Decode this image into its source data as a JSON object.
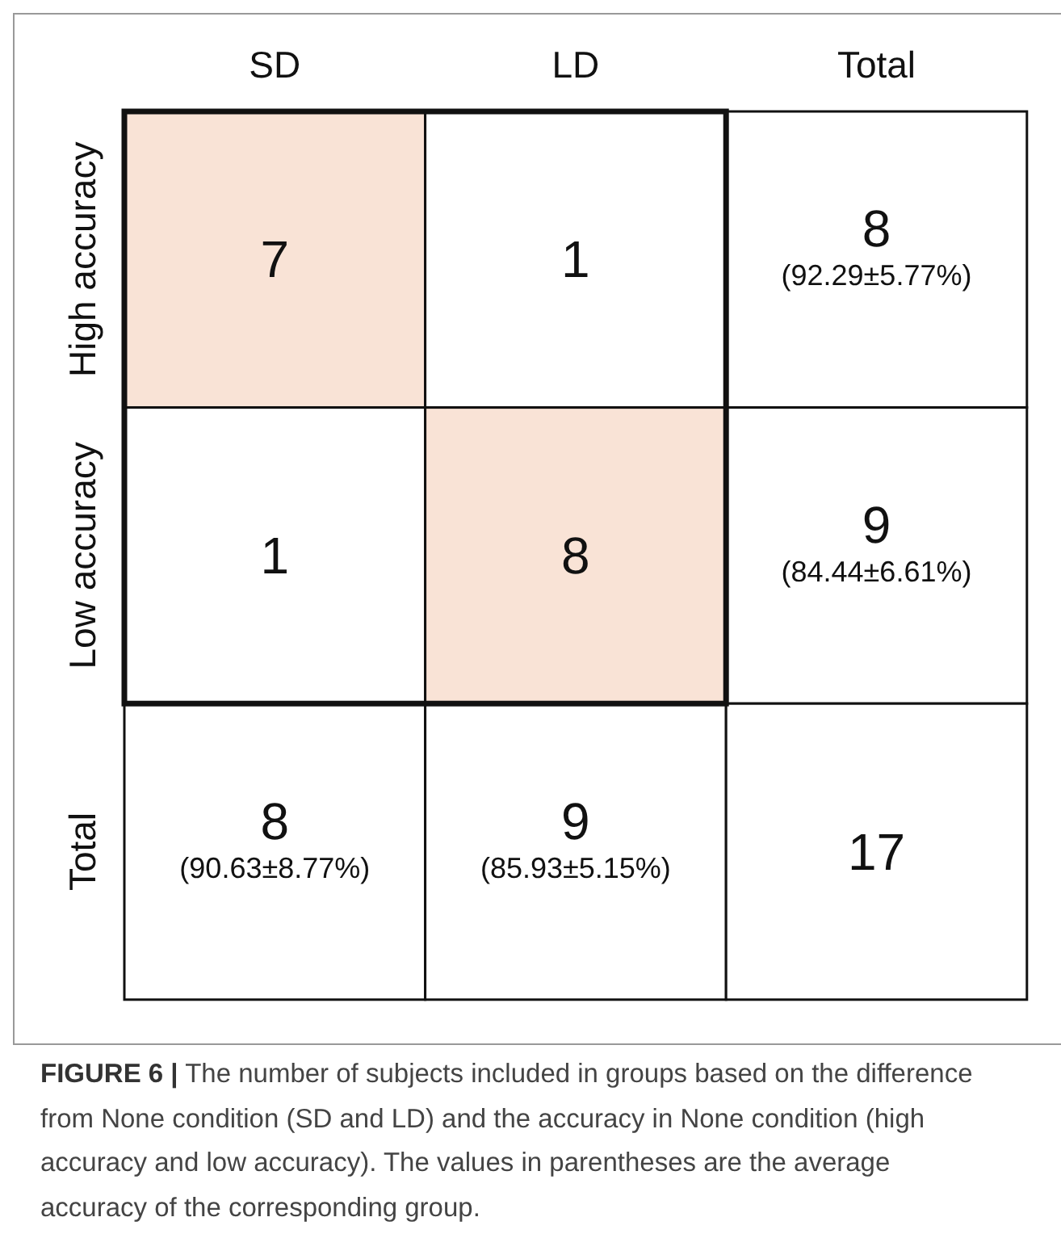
{
  "chart_data": {
    "type": "heatmap",
    "categories": [
      "SD",
      "LD",
      "Total"
    ],
    "y_categories": [
      "High accuracy",
      "Low accuracy",
      "Total"
    ],
    "cells": [
      [
        7,
        1,
        8
      ],
      [
        1,
        8,
        9
      ],
      [
        8,
        9,
        17
      ]
    ],
    "colors": [
      [
        "#f9e3d6",
        "#ffffff",
        "#ffffff"
      ],
      [
        "#ffffff",
        "#f9e3d6",
        "#ffffff"
      ],
      [
        "#ffffff",
        "#ffffff",
        "#ffffff"
      ]
    ],
    "data_labels": true,
    "annotations": [
      "(92.29±5.77%)",
      "(84.44±6.61%)",
      "(90.63±8.77%)",
      "(85.93±5.15%)",
      "FIGURE 6 | The number of subjects included in groups based on the difference from None condition (SD and LD) and the accuracy in None condition (high accuracy and low accuracy). The values in parentheses are the average accuracy of the corresponding group."
    ]
  }
}
